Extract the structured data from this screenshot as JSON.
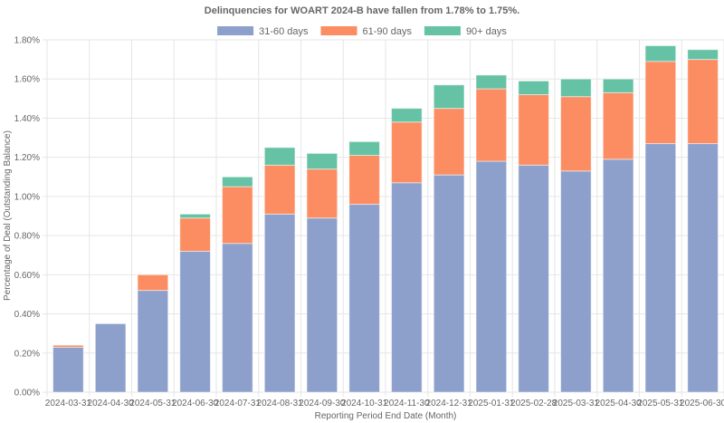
{
  "chart_data": {
    "type": "bar",
    "stacked": true,
    "title": "Delinquencies for WOART 2024-B have fallen from 1.78% to 1.75%.",
    "xlabel": "Reporting Period End Date (Month)",
    "ylabel": "Percentage of Deal (Outstanding Balance)",
    "ylim": [
      0,
      1.8
    ],
    "yticks": [
      "0.00%",
      "0.20%",
      "0.40%",
      "0.60%",
      "0.80%",
      "1.00%",
      "1.20%",
      "1.40%",
      "1.60%",
      "1.80%"
    ],
    "ytick_values": [
      0,
      0.2,
      0.4,
      0.6,
      0.8,
      1.0,
      1.2,
      1.4,
      1.6,
      1.8
    ],
    "grid": true,
    "legend_position": "top-center",
    "categories": [
      "2024-03-31",
      "2024-04-30",
      "2024-05-31",
      "2024-06-30",
      "2024-07-31",
      "2024-08-31",
      "2024-09-30",
      "2024-10-31",
      "2024-11-30",
      "2024-12-31",
      "2025-01-31",
      "2025-02-28",
      "2025-03-31",
      "2025-04-30",
      "2025-05-31",
      "2025-06-30"
    ],
    "series": [
      {
        "name": "31-60 days",
        "color": "#8da0cb",
        "values": [
          0.23,
          0.35,
          0.52,
          0.72,
          0.76,
          0.91,
          0.89,
          0.96,
          1.07,
          1.11,
          1.18,
          1.16,
          1.13,
          1.19,
          1.27,
          1.27
        ]
      },
      {
        "name": "61-90 days",
        "color": "#fc8d62",
        "values": [
          0.01,
          0.0,
          0.08,
          0.17,
          0.29,
          0.25,
          0.25,
          0.25,
          0.31,
          0.34,
          0.37,
          0.36,
          0.38,
          0.34,
          0.42,
          0.43
        ]
      },
      {
        "name": "90+ days",
        "color": "#66c2a5",
        "values": [
          0.0,
          0.0,
          0.0,
          0.02,
          0.05,
          0.09,
          0.08,
          0.07,
          0.07,
          0.12,
          0.07,
          0.07,
          0.09,
          0.07,
          0.08,
          0.05
        ]
      }
    ]
  }
}
